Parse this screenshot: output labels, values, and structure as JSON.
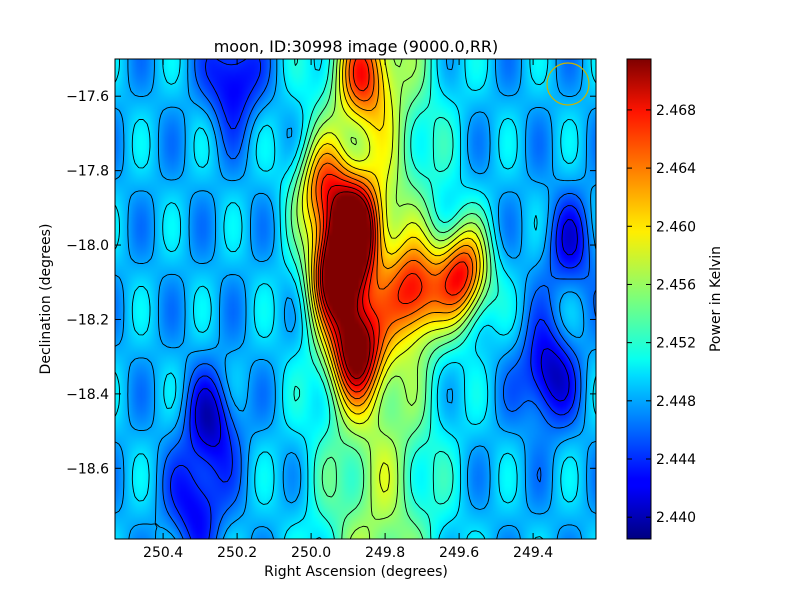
{
  "chart_data": {
    "type": "heatmap",
    "title": "moon, ID:30998 image (9000.0,RR)",
    "xlabel": "Right Ascension (degrees)",
    "ylabel": "Declination (degrees)",
    "colorbar_label": "Power in Kelvin",
    "xlim": [
      250.53,
      249.23
    ],
    "ylim": [
      -18.79,
      -17.5
    ],
    "x_ticks": [
      250.4,
      250.2,
      250.0,
      249.8,
      249.6,
      249.4
    ],
    "x_tick_labels": [
      "250.4",
      "250.2",
      "250.0",
      "249.8",
      "249.6",
      "249.4"
    ],
    "y_ticks": [
      -17.6,
      -17.8,
      -18.0,
      -18.2,
      -18.4,
      -18.6
    ],
    "y_tick_labels": [
      "−17.6",
      "−17.8",
      "−18.0",
      "−18.2",
      "−18.4",
      "−18.6"
    ],
    "color_range": [
      2.4385,
      2.4715
    ],
    "colorbar_ticks": [
      2.44,
      2.444,
      2.448,
      2.452,
      2.456,
      2.46,
      2.464,
      2.468
    ],
    "colorbar_tick_labels": [
      "2.440",
      "2.444",
      "2.448",
      "2.452",
      "2.456",
      "2.460",
      "2.464",
      "2.468"
    ],
    "colormap": "jet",
    "contours": true,
    "beam_marker": "circle",
    "beam_color": "#c8b400",
    "peak_value_estimate": 2.47,
    "features": [
      {
        "ra": 249.93,
        "dec": -18.08,
        "value": 2.47
      },
      {
        "ra": 249.88,
        "dec": -18.28,
        "value": 2.467
      },
      {
        "ra": 249.59,
        "dec": -18.08,
        "value": 2.466
      },
      {
        "ra": 249.72,
        "dec": -18.13,
        "value": 2.463
      },
      {
        "ra": 249.88,
        "dec": -17.95,
        "value": 2.466
      },
      {
        "ra": 249.97,
        "dec": -17.85,
        "value": 2.461
      },
      {
        "ra": 249.86,
        "dec": -17.55,
        "value": 2.459
      },
      {
        "ra": 250.27,
        "dec": -18.48,
        "value": 2.441
      },
      {
        "ra": 249.36,
        "dec": -18.35,
        "value": 2.44
      },
      {
        "ra": 250.31,
        "dec": -18.7,
        "value": 2.442
      },
      {
        "ra": 250.21,
        "dec": -17.55,
        "value": 2.441
      },
      {
        "ra": 249.3,
        "dec": -18.0,
        "value": 2.443
      }
    ]
  }
}
